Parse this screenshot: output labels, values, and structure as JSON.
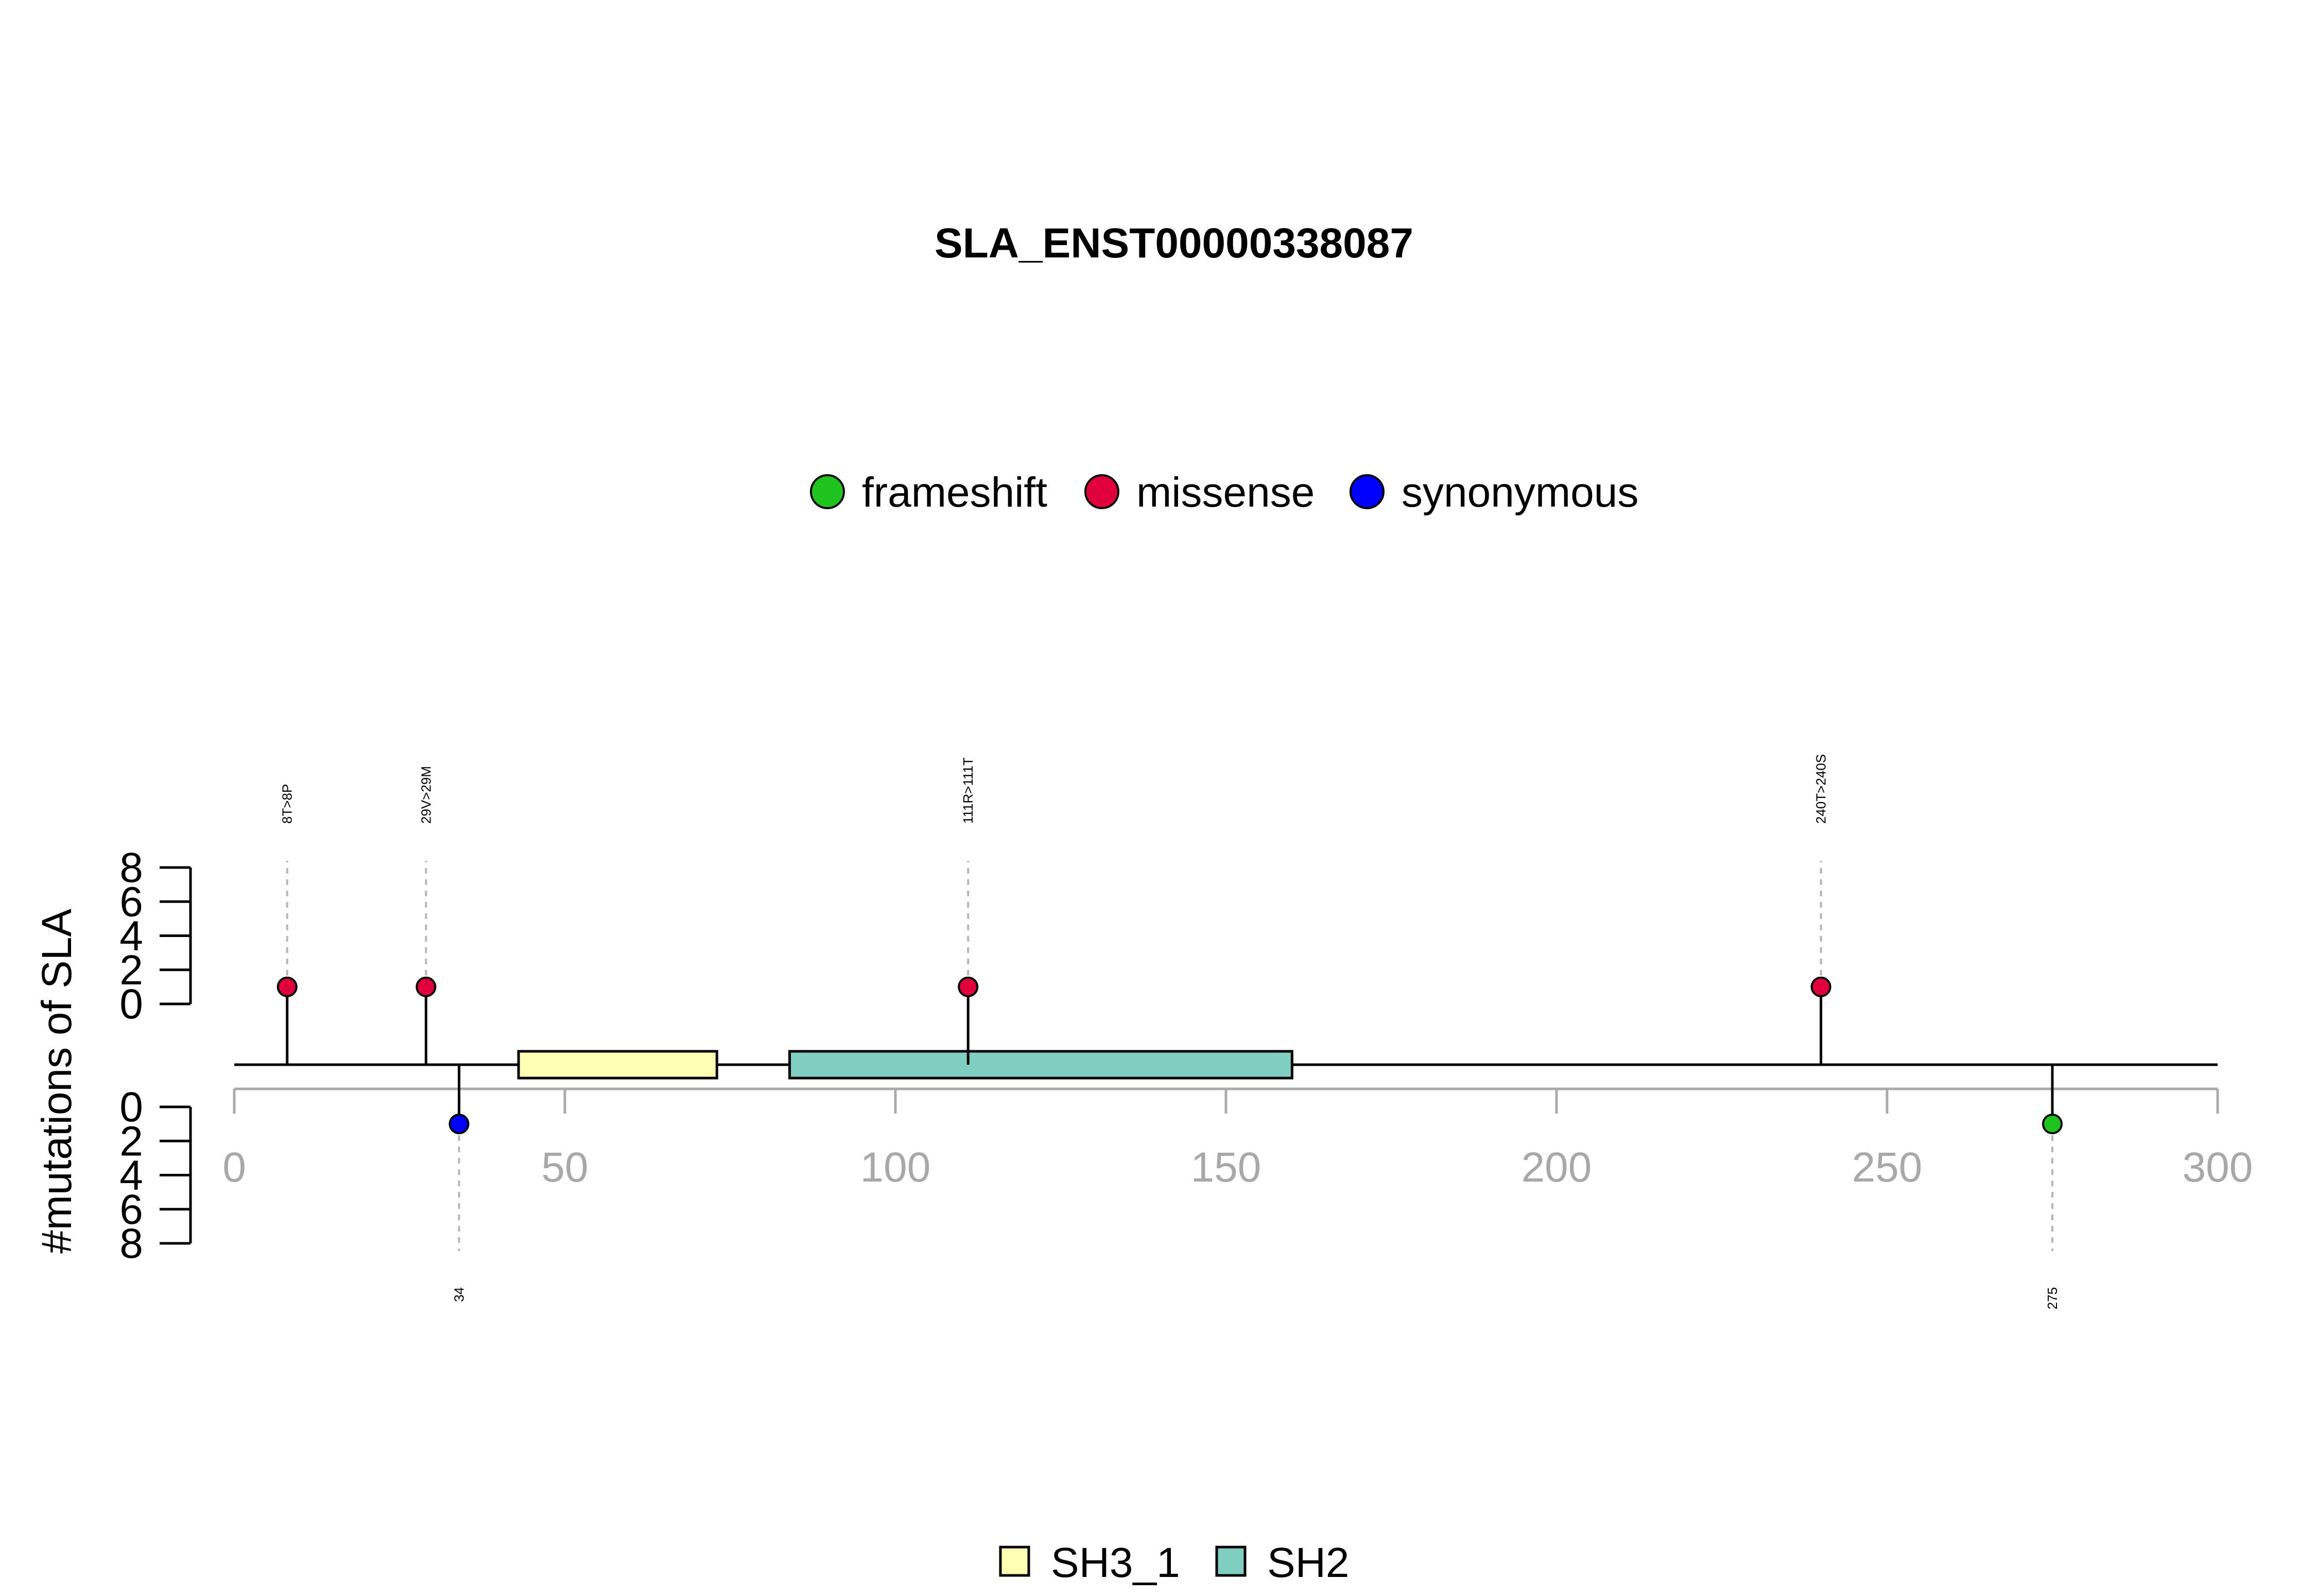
{
  "chart_data": {
    "type": "lollipop",
    "title": "SLA_ENST00000338087",
    "ylabel": "#mutations of SLA",
    "xlim": [
      0,
      300
    ],
    "x_ticks": [
      0,
      50,
      100,
      150,
      200,
      250,
      300
    ],
    "y_ticks": [
      0,
      2,
      4,
      6,
      8
    ],
    "y_max": 8,
    "mutation_types": [
      {
        "name": "frameshift",
        "color": "#1ec31e"
      },
      {
        "name": "missense",
        "color": "#e0003c"
      },
      {
        "name": "synonymous",
        "color": "#0000ff"
      }
    ],
    "domains": [
      {
        "name": "SH3_1",
        "start": 43,
        "end": 73,
        "color": "#ffffb3"
      },
      {
        "name": "SH2",
        "start": 84,
        "end": 160,
        "color": "#80cdc1"
      }
    ],
    "mutations_above": [
      {
        "position": 8,
        "label": "8T>8P",
        "count": 1,
        "type": "missense"
      },
      {
        "position": 29,
        "label": "29V>29M",
        "count": 1,
        "type": "missense"
      },
      {
        "position": 111,
        "label": "111R>111T",
        "count": 1,
        "type": "missense"
      },
      {
        "position": 240,
        "label": "240T>240S",
        "count": 1,
        "type": "missense"
      }
    ],
    "mutations_below": [
      {
        "position": 34,
        "label": "34",
        "count": 1,
        "type": "synonymous"
      },
      {
        "position": 275,
        "label": "275",
        "count": 1,
        "type": "frameshift"
      }
    ]
  }
}
